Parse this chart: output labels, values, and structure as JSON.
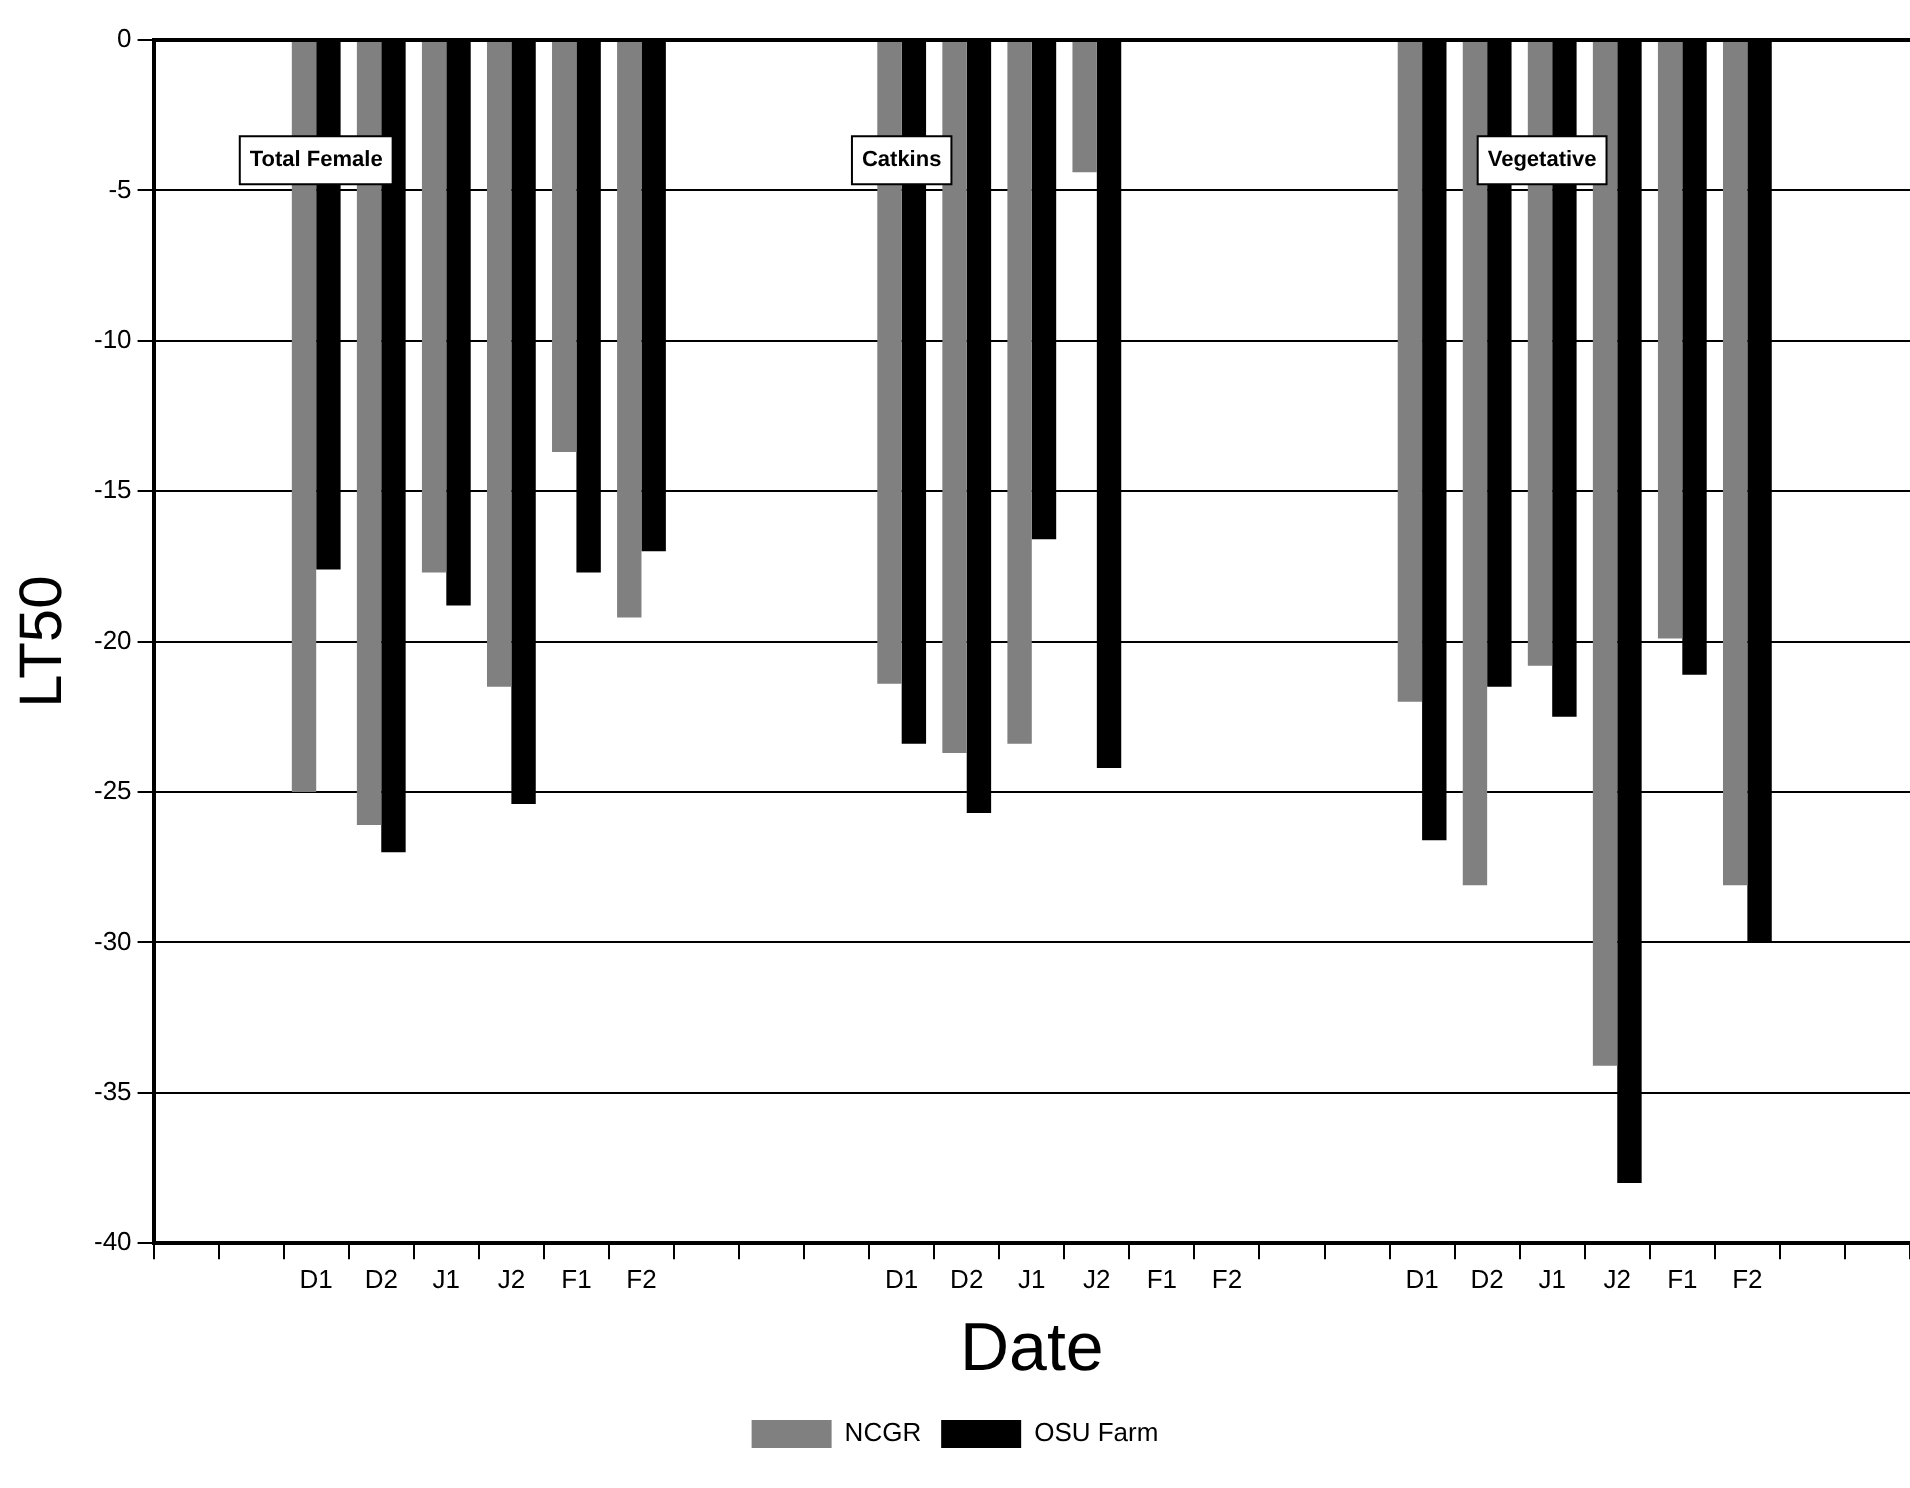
{
  "chart_data": {
    "type": "bar",
    "xlabel": "Date",
    "ylabel": "LT50",
    "categories": [
      null,
      null,
      "D1",
      "D2",
      "J1",
      "J2",
      "F1",
      "F2",
      null,
      null,
      null,
      "D1",
      "D2",
      "J1",
      "J2",
      "F1",
      "F2",
      null,
      null,
      "D1",
      "D2",
      "J1",
      "J2",
      "F1",
      "F2",
      null,
      null
    ],
    "series": [
      {
        "name": "NCGR",
        "color": "#808080",
        "values": [
          null,
          null,
          -25,
          -26.1,
          -17.7,
          -21.5,
          -13.7,
          -19.2,
          null,
          null,
          null,
          -21.4,
          -23.7,
          -23.4,
          -4.4,
          null,
          null,
          null,
          null,
          -22,
          -28.1,
          -20.8,
          -34.1,
          -19.9,
          -28.1,
          null,
          null
        ]
      },
      {
        "name": "OSU Farm",
        "color": "#000000",
        "values": [
          null,
          null,
          -17.6,
          -27,
          -18.8,
          -25.4,
          -17.7,
          -17,
          null,
          null,
          null,
          -23.4,
          -25.7,
          -16.6,
          -24.2,
          null,
          null,
          null,
          null,
          -26.6,
          -21.5,
          -22.5,
          -38,
          -21.1,
          -30,
          null,
          null
        ]
      }
    ],
    "ylim": [
      -40,
      0
    ],
    "yticks": [
      0,
      -5,
      -10,
      -15,
      -20,
      -25,
      -30,
      -35,
      -40
    ],
    "grid": "y",
    "legend": "bottom",
    "annotations": [
      "Total Female",
      "Catkins",
      "Vegetative"
    ]
  }
}
